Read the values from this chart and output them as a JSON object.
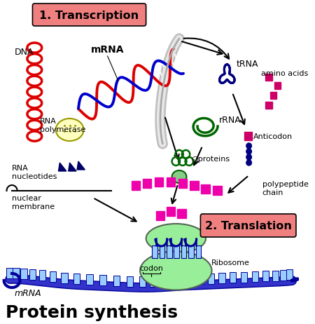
{
  "title": "Protein synthesis",
  "title_fontsize": 18,
  "title_fontweight": "bold",
  "background_color": "#ffffff",
  "fig_width": 4.5,
  "fig_height": 4.62,
  "dpi": 100,
  "label_transcription": "1. Transcription",
  "label_translation": "2. Translation",
  "label_dna": "DNA",
  "label_mrna": "mRNA",
  "label_rna_pol": "RNA\npolymerase",
  "label_rna_nuc": "RNA\nnucleotides",
  "label_nuc_mem": "nuclear\nmembrane",
  "label_trna": "tRNA",
  "label_rrna": "rRNA",
  "label_amino": "amino acids",
  "label_anticodon": "Anticodon",
  "label_proteins": "○proteins",
  "label_poly": "polypeptide\nchain",
  "label_ribosome": "Ribosome",
  "label_codon": "codon",
  "label_mrna2": "mRNA",
  "transcription_box_color": "#f08080",
  "translation_box_color": "#f08080",
  "dna_color": "#dd0000",
  "mrna_color_outer": "#dd0000",
  "mrna_color_inner": "#0000cc",
  "rna_pol_color": "#ffffc0",
  "trna_color": "#000080",
  "rrna_color": "#006600",
  "ribosome_color": "#99ee99",
  "mRNA_bottom_color": "#000099",
  "codon_color": "#99ccff",
  "polypeptide_color": "#ee00aa",
  "amino_color": "#cc0000",
  "nucleotide_color": "#000066",
  "arrow_color": "#000000",
  "proteins_color": "#006600"
}
